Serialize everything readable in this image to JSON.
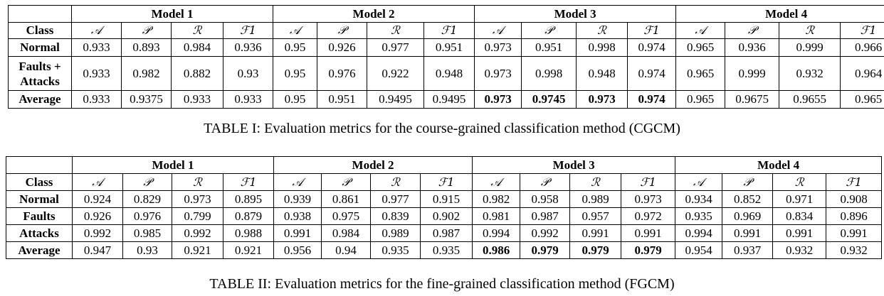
{
  "table1": {
    "models": [
      "Model 1",
      "Model 2",
      "Model 3",
      "Model 4"
    ],
    "class_header": "Class",
    "metrics": [
      "𝒜",
      "𝒫",
      "ℛ",
      "ℱ1"
    ],
    "rows": [
      {
        "label": "Normal",
        "values": [
          "0.933",
          "0.893",
          "0.984",
          "0.936",
          "0.95",
          "0.926",
          "0.977",
          "0.951",
          "0.973",
          "0.951",
          "0.998",
          "0.974",
          "0.965",
          "0.936",
          "0.999",
          "0.966"
        ]
      },
      {
        "label_line1": "Faults +",
        "label_line2": "Attacks",
        "values": [
          "0.933",
          "0.982",
          "0.882",
          "0.93",
          "0.95",
          "0.976",
          "0.922",
          "0.948",
          "0.973",
          "0.998",
          "0.948",
          "0.974",
          "0.965",
          "0.999",
          "0.932",
          "0.964"
        ]
      },
      {
        "label": "Average",
        "values": [
          "0.933",
          "0.9375",
          "0.933",
          "0.933",
          "0.95",
          "0.951",
          "0.9495",
          "0.9495",
          "0.973",
          "0.9745",
          "0.973",
          "0.974",
          "0.965",
          "0.9675",
          "0.9655",
          "0.965"
        ]
      }
    ],
    "caption": "TABLE I: Evaluation metrics for the course-grained classification method (CGCM)"
  },
  "table2": {
    "models": [
      "Model 1",
      "Model 2",
      "Model 3",
      "Model 4"
    ],
    "class_header": "Class",
    "metrics": [
      "𝒜",
      "𝒫",
      "ℛ",
      "ℱ1"
    ],
    "rows": [
      {
        "label": "Normal",
        "values": [
          "0.924",
          "0.829",
          "0.973",
          "0.895",
          "0.939",
          "0.861",
          "0.977",
          "0.915",
          "0.982",
          "0.958",
          "0.989",
          "0.973",
          "0.934",
          "0.852",
          "0.971",
          "0.908"
        ]
      },
      {
        "label": "Faults",
        "values": [
          "0.926",
          "0.976",
          "0.799",
          "0.879",
          "0.938",
          "0.975",
          "0.839",
          "0.902",
          "0.981",
          "0.987",
          "0.957",
          "0.972",
          "0.935",
          "0.969",
          "0.834",
          "0.896"
        ]
      },
      {
        "label": "Attacks",
        "values": [
          "0.992",
          "0.985",
          "0.992",
          "0.988",
          "0.991",
          "0.984",
          "0.989",
          "0.987",
          "0.994",
          "0.992",
          "0.991",
          "0.991",
          "0.994",
          "0.991",
          "0.991",
          "0.991"
        ]
      },
      {
        "label": "Average",
        "values": [
          "0.947",
          "0.93",
          "0.921",
          "0.921",
          "0.956",
          "0.94",
          "0.935",
          "0.935",
          "0.986",
          "0.979",
          "0.979",
          "0.979",
          "0.954",
          "0.937",
          "0.932",
          "0.932"
        ]
      }
    ],
    "caption": "TABLE II: Evaluation metrics for the fine-grained classification method (FGCM)"
  }
}
